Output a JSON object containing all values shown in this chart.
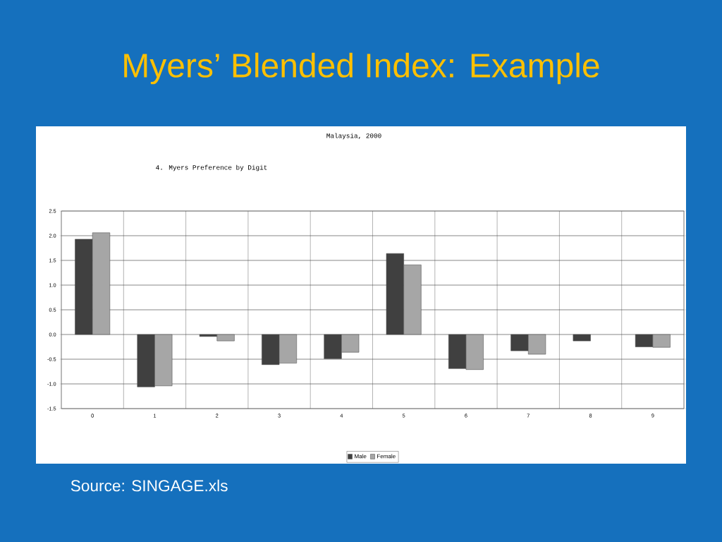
{
  "chart_data": {
    "type": "bar",
    "title": "Myers’ Blended Index: Example",
    "subtitle": "Malaysia, 2000",
    "annotations": [
      "4.  Myers Preference by Digit",
      "Source: SINGAGE.xls"
    ],
    "categories": [
      "0",
      "1",
      "2",
      "3",
      "4",
      "5",
      "6",
      "7",
      "8",
      "9"
    ],
    "series": [
      {
        "name": "Male",
        "color": "#404040",
        "values": [
          1.93,
          -1.06,
          -0.04,
          -0.61,
          -0.49,
          1.64,
          -0.69,
          -0.33,
          -0.13,
          -0.25
        ]
      },
      {
        "name": "Female",
        "color": "#a6a6a6",
        "values": [
          2.06,
          -1.04,
          -0.13,
          -0.58,
          -0.36,
          1.41,
          -0.71,
          -0.4,
          null,
          -0.26
        ]
      }
    ],
    "ylim": [
      -1.5,
      2.5
    ],
    "yticks": [
      {
        "value": -1.5,
        "label": "-1.5"
      },
      {
        "value": -1,
        "label": "-1.0"
      },
      {
        "value": -0.5,
        "label": "-0.5"
      },
      {
        "value": 0,
        "label": "0.0"
      },
      {
        "value": 0.5,
        "label": "0.5"
      },
      {
        "value": 1,
        "label": "1.0"
      },
      {
        "value": 1.5,
        "label": "1.5"
      },
      {
        "value": 2,
        "label": "2.0"
      },
      {
        "value": 2.5,
        "label": "2.5"
      }
    ],
    "grid": true,
    "legend": "bottom"
  }
}
